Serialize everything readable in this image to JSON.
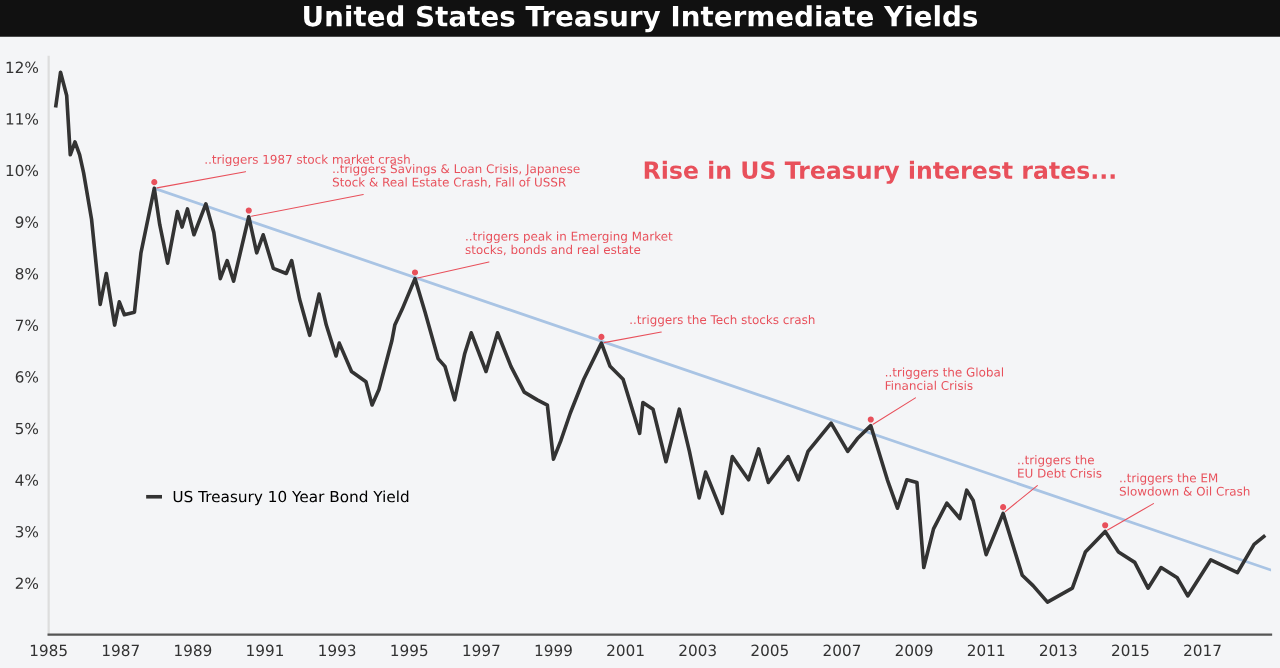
{
  "chart_data": {
    "type": "line",
    "title": "United States Treasury Intermediate Yields",
    "x": [
      1985.2,
      1985.33,
      1985.5,
      1985.6,
      1985.73,
      1985.86,
      1985.97,
      1986.19,
      1986.43,
      1986.6,
      1986.83,
      1986.96,
      1987.1,
      1987.38,
      1987.56,
      1987.93,
      1988.08,
      1988.3,
      1988.57,
      1988.7,
      1988.85,
      1989.03,
      1989.36,
      1989.58,
      1989.76,
      1989.95,
      1990.13,
      1990.55,
      1990.77,
      1990.95,
      1991.23,
      1991.59,
      1991.74,
      1991.96,
      1992.24,
      1992.5,
      1992.7,
      1992.97,
      1993.06,
      1993.4,
      1993.8,
      1993.97,
      1994.16,
      1994.52,
      1994.6,
      1994.8,
      1995.16,
      1995.44,
      1995.8,
      1995.99,
      1996.26,
      1996.54,
      1996.72,
      1997.13,
      1997.45,
      1997.82,
      1998.19,
      1998.55,
      1998.83,
      1999.0,
      1999.2,
      1999.47,
      1999.84,
      2000.33,
      2000.57,
      2000.93,
      2001.39,
      2001.48,
      2001.76,
      2002.12,
      2002.49,
      2002.77,
      2003.04,
      2003.22,
      2003.68,
      2003.96,
      2004.41,
      2004.69,
      2004.96,
      2005.51,
      2005.79,
      2006.06,
      2006.7,
      2007.16,
      2007.43,
      2007.8,
      2008.26,
      2008.54,
      2008.8,
      2009.08,
      2009.27,
      2009.54,
      2009.91,
      2010.27,
      2010.46,
      2010.64,
      2011.0,
      2011.47,
      2012.0,
      2012.3,
      2012.7,
      2013.39,
      2013.75,
      2014.3,
      2014.67,
      2015.12,
      2015.49,
      2015.85,
      2016.3,
      2016.59,
      2017.23,
      2017.97,
      2018.43,
      2018.7
    ],
    "series": [
      {
        "name": "US Treasury 10 Year Bond Yield",
        "color": "#333333",
        "values": [
          11.25,
          11.9,
          11.45,
          10.3,
          10.55,
          10.3,
          9.95,
          9.05,
          7.4,
          8.0,
          7.0,
          7.45,
          7.2,
          7.25,
          8.4,
          9.65,
          8.95,
          8.2,
          9.2,
          8.9,
          9.25,
          8.75,
          9.35,
          8.8,
          7.9,
          8.25,
          7.85,
          9.1,
          8.4,
          8.75,
          8.1,
          8.0,
          8.25,
          7.5,
          6.8,
          7.6,
          7.0,
          6.4,
          6.65,
          6.1,
          5.9,
          5.45,
          5.75,
          6.7,
          7.0,
          7.3,
          7.9,
          7.25,
          6.35,
          6.2,
          5.55,
          6.45,
          6.85,
          6.1,
          6.85,
          6.2,
          5.7,
          5.55,
          5.45,
          4.4,
          4.75,
          5.3,
          5.95,
          6.65,
          6.2,
          5.95,
          4.9,
          5.5,
          5.37,
          4.35,
          5.37,
          4.55,
          3.65,
          4.15,
          3.35,
          4.45,
          4.0,
          4.6,
          3.95,
          4.45,
          4.0,
          4.55,
          5.1,
          4.55,
          4.8,
          5.05,
          4.0,
          3.45,
          4.0,
          3.95,
          2.3,
          3.05,
          3.55,
          3.25,
          3.8,
          3.6,
          2.55,
          3.35,
          2.15,
          1.95,
          1.63,
          1.9,
          2.6,
          3.0,
          2.6,
          2.4,
          1.9,
          2.3,
          2.1,
          1.75,
          2.45,
          2.2,
          2.75,
          2.9
        ]
      },
      {
        "type": "line",
        "color": "#a9c4e4",
        "x": [
          1987.93,
          2018.9
        ],
        "values": [
          9.65,
          2.25
        ]
      }
    ],
    "xlim": [
      1985,
      2018.9
    ],
    "ylim": [
      1,
      12.2
    ],
    "xticks": [
      1985,
      1987,
      1989,
      1991,
      1993,
      1995,
      1997,
      1999,
      2001,
      2003,
      2005,
      2007,
      2009,
      2011,
      2013,
      2015,
      2017
    ],
    "yticks": [
      {
        "value": 2,
        "label": "2%"
      },
      {
        "value": 3,
        "label": "3%"
      },
      {
        "value": 4,
        "label": "4%"
      },
      {
        "value": 5,
        "label": "5%"
      },
      {
        "value": 6,
        "label": "6%"
      },
      {
        "value": 7,
        "label": "7%"
      },
      {
        "value": 8,
        "label": "8%"
      },
      {
        "value": 9,
        "label": "9%"
      },
      {
        "value": 10,
        "label": "10%"
      },
      {
        "value": 11,
        "label": "11%"
      },
      {
        "value": 12,
        "label": "12%"
      }
    ],
    "grid": false,
    "legend": "left",
    "marker": "none",
    "line_style": "solid",
    "annotations": [
      "Rise in US Treasury interest rates...",
      {
        "text": "..triggers 1987 stock market crash",
        "x": 1987.93,
        "y": 9.65
      },
      {
        "text": "..triggers Savings & Loan Crisis, Japanese\nStock & Real Estate Crash, Fall of USSR",
        "x": 1990.55,
        "y": 9.1
      },
      {
        "text": "..triggers peak in Emerging Market\nstocks, bonds and real estate",
        "x": 1995.16,
        "y": 7.9
      },
      {
        "text": "..triggers the Tech stocks crash",
        "x": 2000.33,
        "y": 6.65
      },
      {
        "text": "..triggers the Global\nFinancial Crisis",
        "x": 2007.8,
        "y": 5.05
      },
      {
        "text": "..triggers the\nEU Debt Crisis",
        "x": 2011.47,
        "y": 3.35
      },
      {
        "text": "..triggers the EM\nSlowdown & Oil Crash",
        "x": 2014.3,
        "y": 3.0
      }
    ]
  }
}
